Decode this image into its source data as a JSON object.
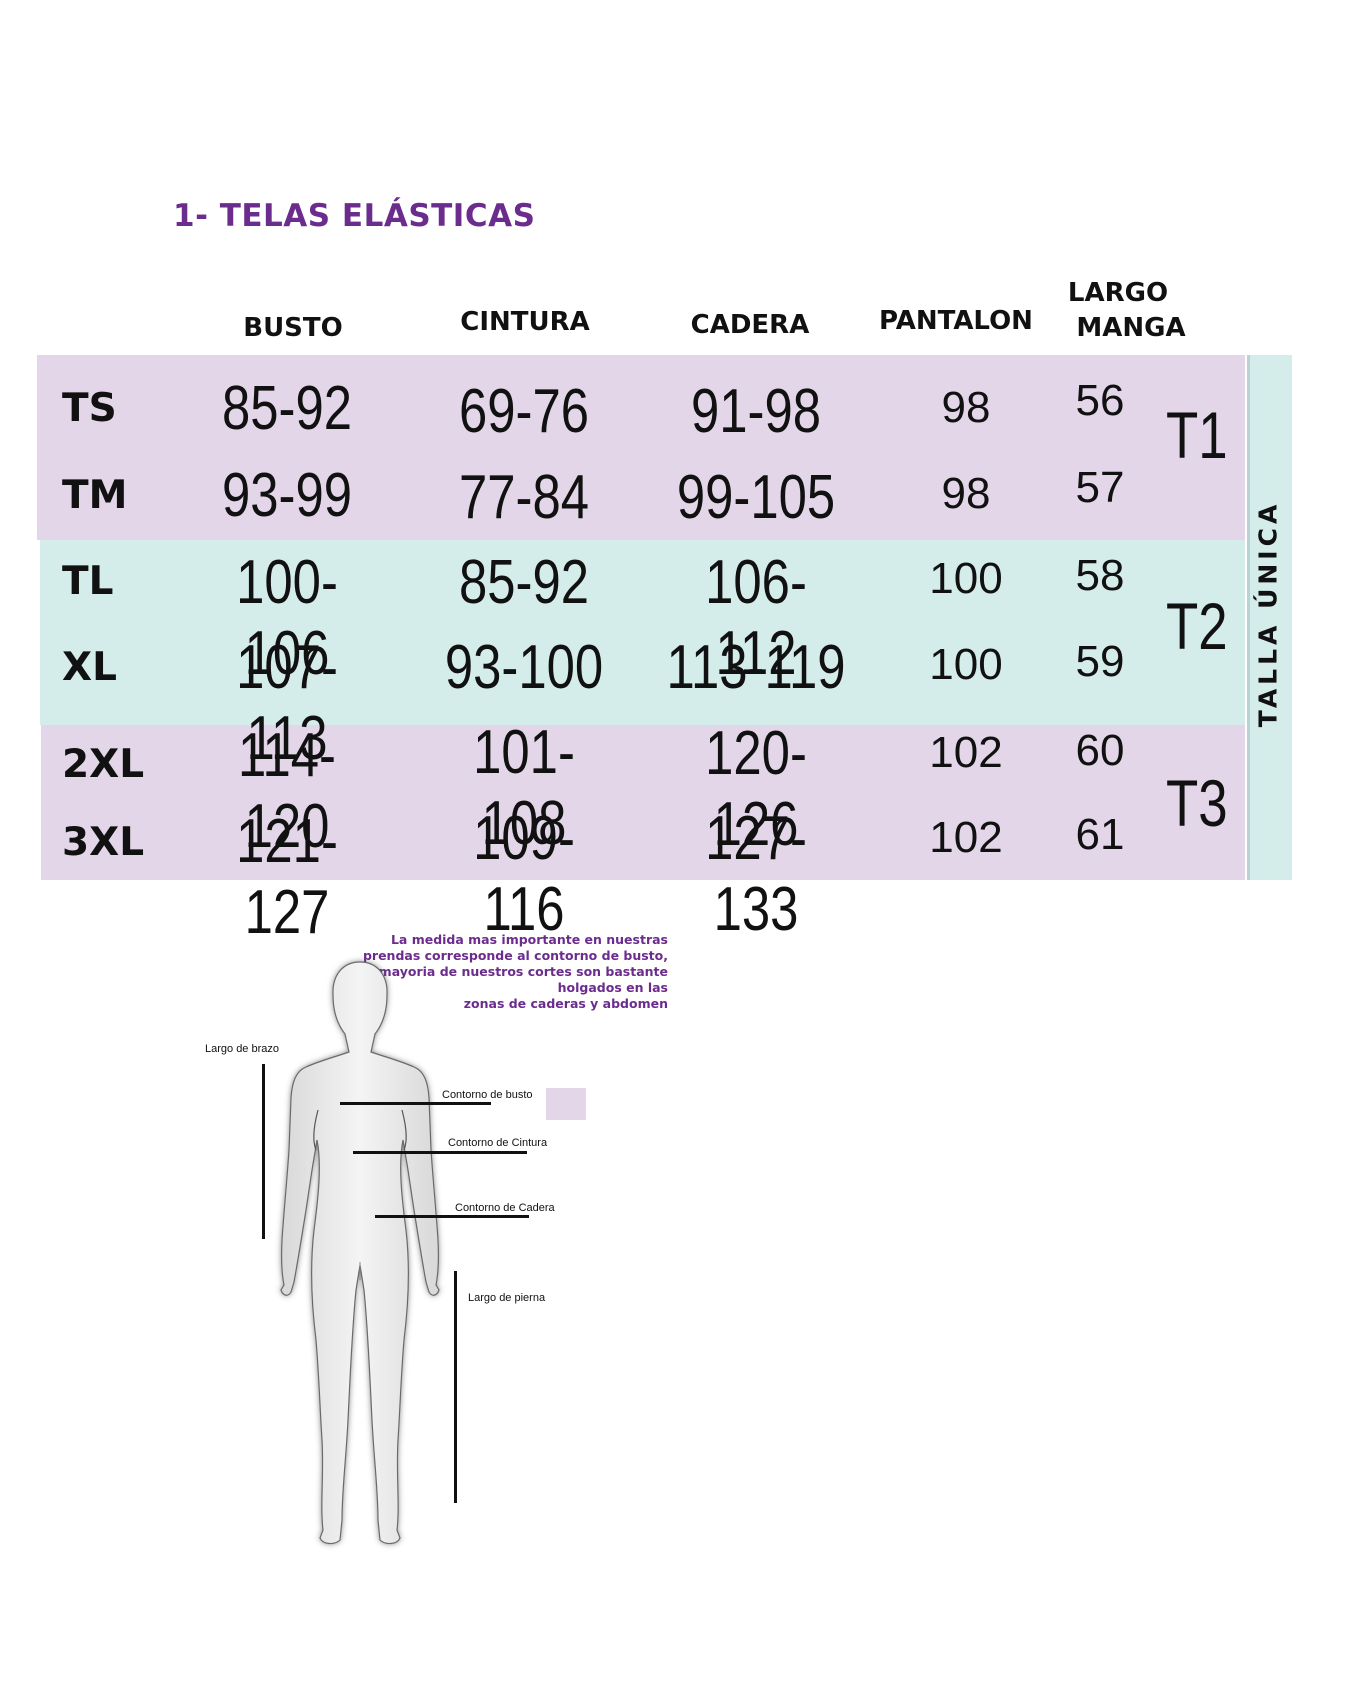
{
  "title": "1- TELAS  ELÁSTICAS",
  "headers": {
    "busto": "BUSTO",
    "cintura": "CINTURA",
    "cadera": "CADERA",
    "pantalon": "PANTALON",
    "largo": "LARGO",
    "manga": "MANGA"
  },
  "rows": [
    {
      "size": "TS",
      "busto": "85-92",
      "cintura": "69-76",
      "cadera": "91-98",
      "pantalon": "98",
      "manga": "56"
    },
    {
      "size": "TM",
      "busto": "93-99",
      "cintura": "77-84",
      "cadera": "99-105",
      "pantalon": "98",
      "manga": "57"
    },
    {
      "size": "TL",
      "busto": "100-106",
      "cintura": "85-92",
      "cadera": "106-112",
      "pantalon": "100",
      "manga": "58"
    },
    {
      "size": "XL",
      "busto": "107-113",
      "cintura": "93-100",
      "cadera": "113-119",
      "pantalon": "100",
      "manga": "59"
    },
    {
      "size": "2XL",
      "busto": "114-120",
      "cintura": "101-108",
      "cadera": "120-126",
      "pantalon": "102",
      "manga": "60"
    },
    {
      "size": "3XL",
      "busto": "121-127",
      "cintura": "109-116",
      "cadera": "127-133",
      "pantalon": "102",
      "manga": "61"
    }
  ],
  "groups": [
    "T1",
    "T2",
    "T3"
  ],
  "talla_unica": "TALLA ÚNICA",
  "colors": {
    "purple_band": "#e2d6e8",
    "cyan_band": "#d4ecea",
    "title": "#6b2c8e"
  },
  "note": {
    "line1": "La medida mas importante en nuestras",
    "line2": "prendas corresponde al contorno de busto,",
    "line3": "la mayoria de nuestros cortes son bastante",
    "line4": "holgados en las",
    "line5": "zonas de caderas y abdomen"
  },
  "diagram": {
    "largo_brazo": "Largo de brazo",
    "contorno_busto": "Contorno de busto",
    "contorno_cintura": "Contorno de Cintura",
    "contorno_cadera": "Contorno de Cadera",
    "largo_pierna": "Largo de pierna"
  }
}
